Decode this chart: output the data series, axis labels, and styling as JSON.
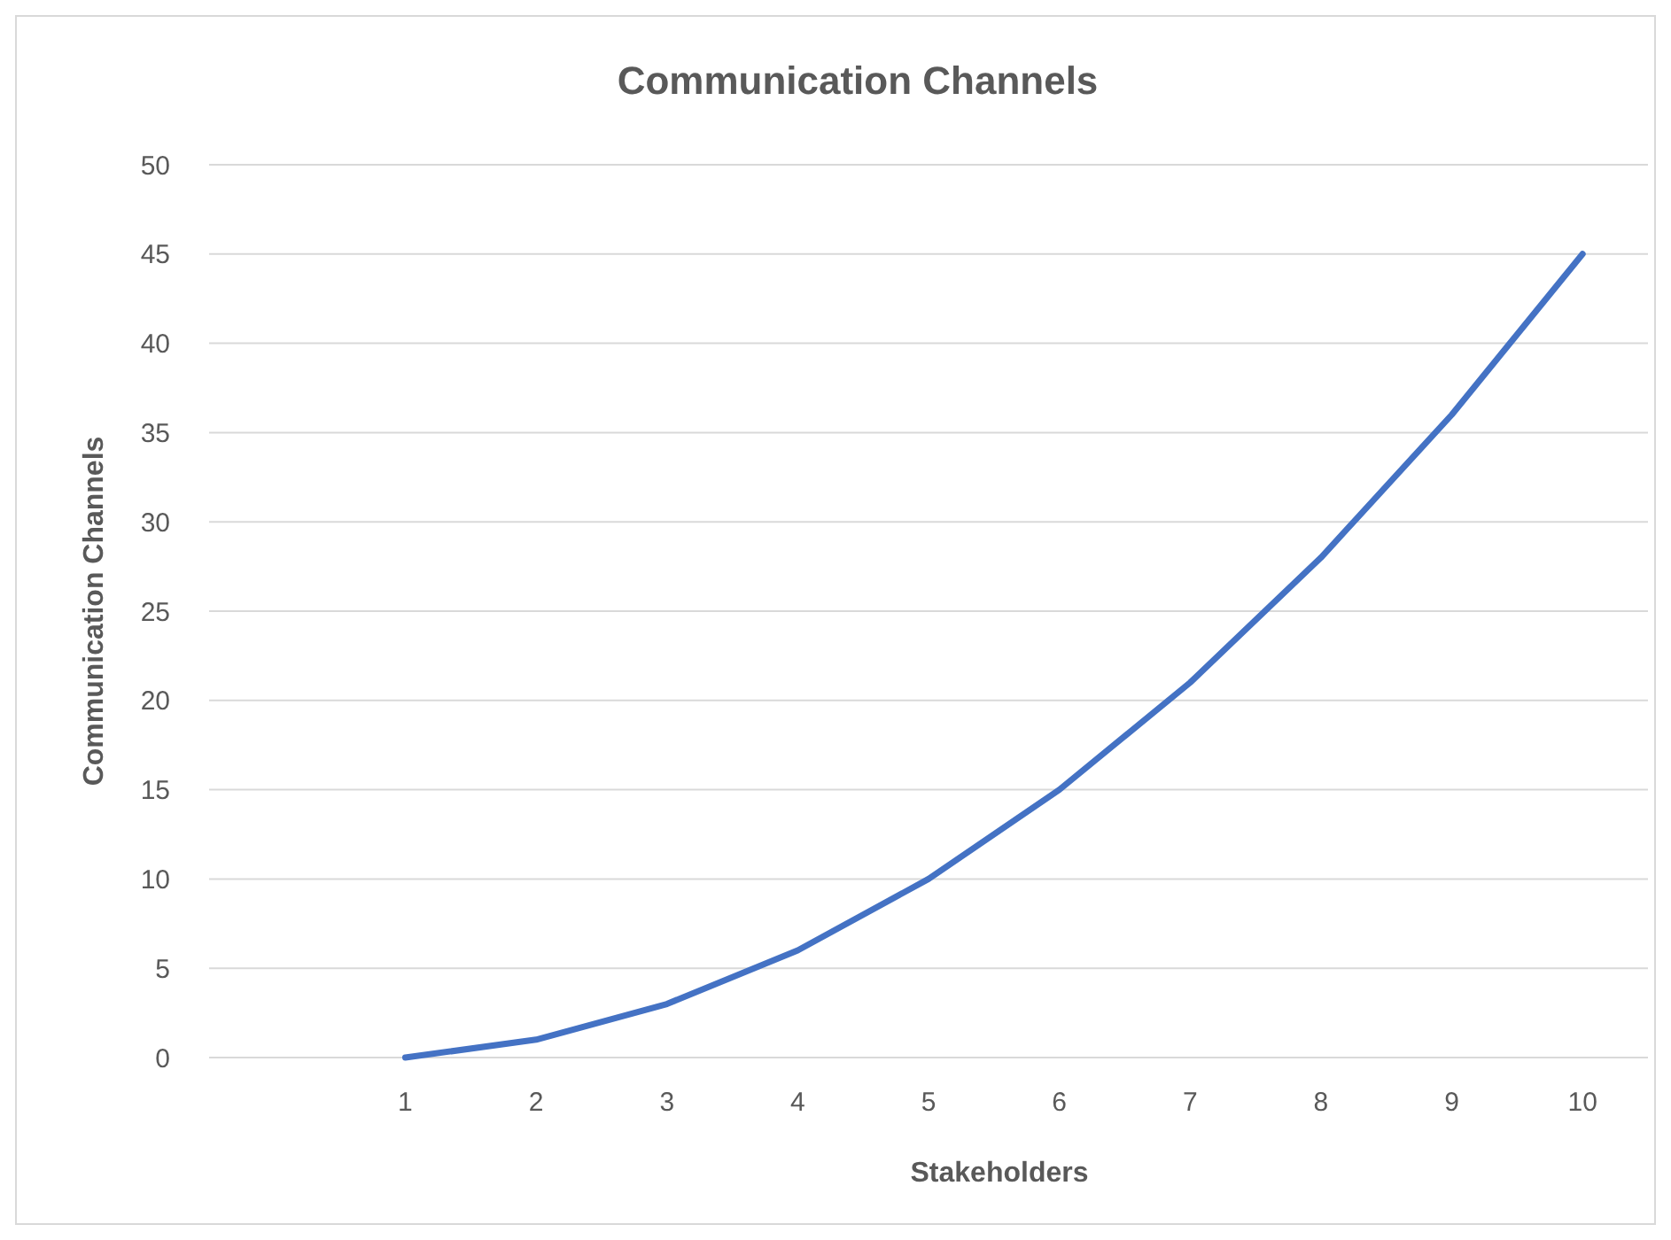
{
  "chart_data": {
    "type": "line",
    "title": "Communication Channels",
    "xlabel": "Stakeholders",
    "ylabel": "Communication Channels",
    "categories": [
      null,
      "1",
      "2",
      "3",
      "4",
      "5",
      "6",
      "7",
      "8",
      "9",
      "10"
    ],
    "series": [
      {
        "color": "#4472c4",
        "values": [
          null,
          0,
          1,
          3,
          6,
          10,
          15,
          21,
          28,
          36,
          45
        ]
      }
    ],
    "ylim": [
      0,
      50
    ],
    "yticks": [
      0,
      5,
      10,
      15,
      20,
      25,
      30,
      35,
      40,
      45,
      50
    ],
    "grid": "y",
    "marker": "none",
    "line_style": "solid"
  }
}
